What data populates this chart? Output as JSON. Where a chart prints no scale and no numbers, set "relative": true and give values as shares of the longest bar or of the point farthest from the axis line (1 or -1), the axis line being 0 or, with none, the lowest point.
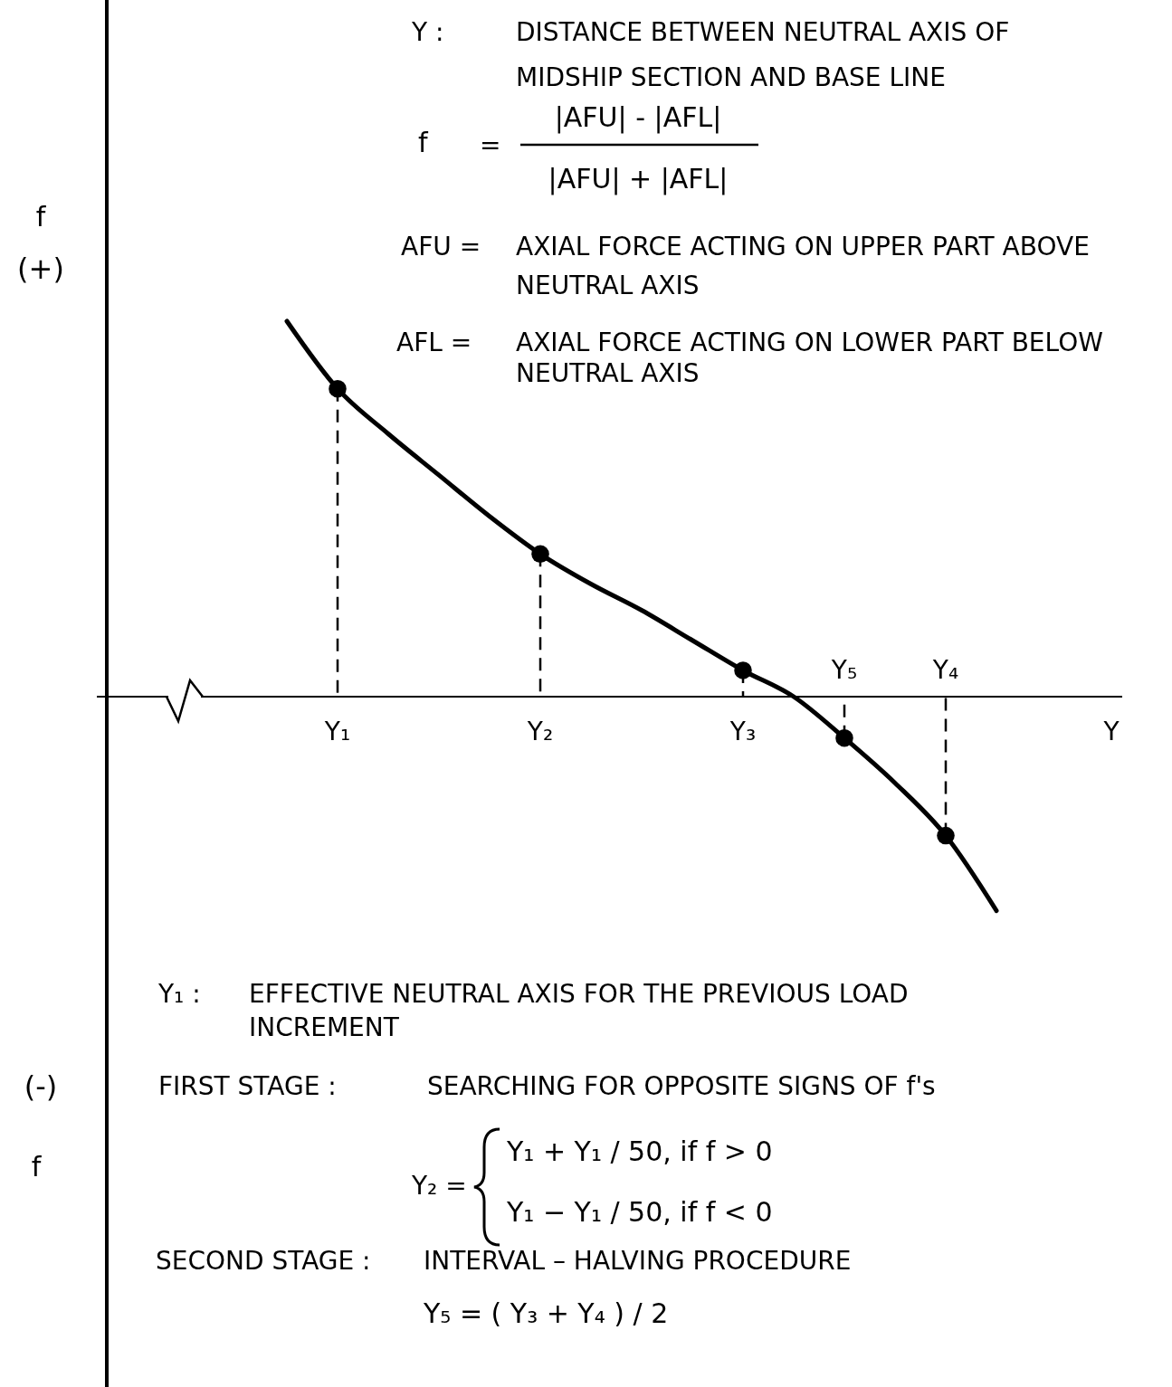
{
  "chart_data": {
    "type": "line",
    "relative": true,
    "xlabel": "Y",
    "categories": [
      null,
      "Y₁",
      null,
      null,
      null,
      "Y₂",
      null,
      null,
      null,
      "Y₃",
      null,
      "Y₅",
      null,
      "Y₄",
      null
    ],
    "series": [
      {
        "color": "#000000",
        "marker": "none",
        "values": [
          1,
          0.82,
          0.7,
          0.59,
          0.48,
          0.38,
          0.3,
          0.23,
          0.15,
          0.07,
          0,
          -0.11,
          -0.23,
          -0.37,
          -0.57
        ]
      },
      {
        "type": "scatter",
        "color": "#000000",
        "marker": "circle",
        "values": [
          null,
          0.82,
          null,
          null,
          null,
          0.38,
          null,
          null,
          null,
          0.07,
          null,
          -0.11,
          null,
          -0.37,
          null
        ]
      }
    ],
    "annotations": [
      "Y :",
      "DISTANCE BETWEEN NEUTRAL AXIS OF",
      "MIDSHIP SECTION AND BASE LINE",
      "f",
      "=",
      "|AFU| - |AFL|",
      "|AFU| + |AFL|",
      "AFU =",
      "AXIAL FORCE ACTING ON UPPER PART ABOVE",
      "NEUTRAL AXIS",
      "AFL =",
      "AXIAL FORCE ACTING ON LOWER PART BELOW",
      "NEUTRAL AXIS",
      "f",
      "(+)",
      "(-)",
      "f",
      "Y₁ :",
      "EFFECTIVE NEUTRAL AXIS FOR THE PREVIOUS LOAD",
      "INCREMENT",
      "FIRST STAGE :",
      "SEARCHING FOR OPPOSITE SIGNS OF f's",
      "Y₂ =",
      "Y₁ + Y₁ / 50,  if  f > 0",
      "Y₁ − Y₁ / 50,  if  f < 0",
      "SECOND STAGE :",
      "INTERVAL – HALVING PROCEDURE",
      "Y₅ = ( Y₃ + Y₄ ) / 2"
    ]
  }
}
